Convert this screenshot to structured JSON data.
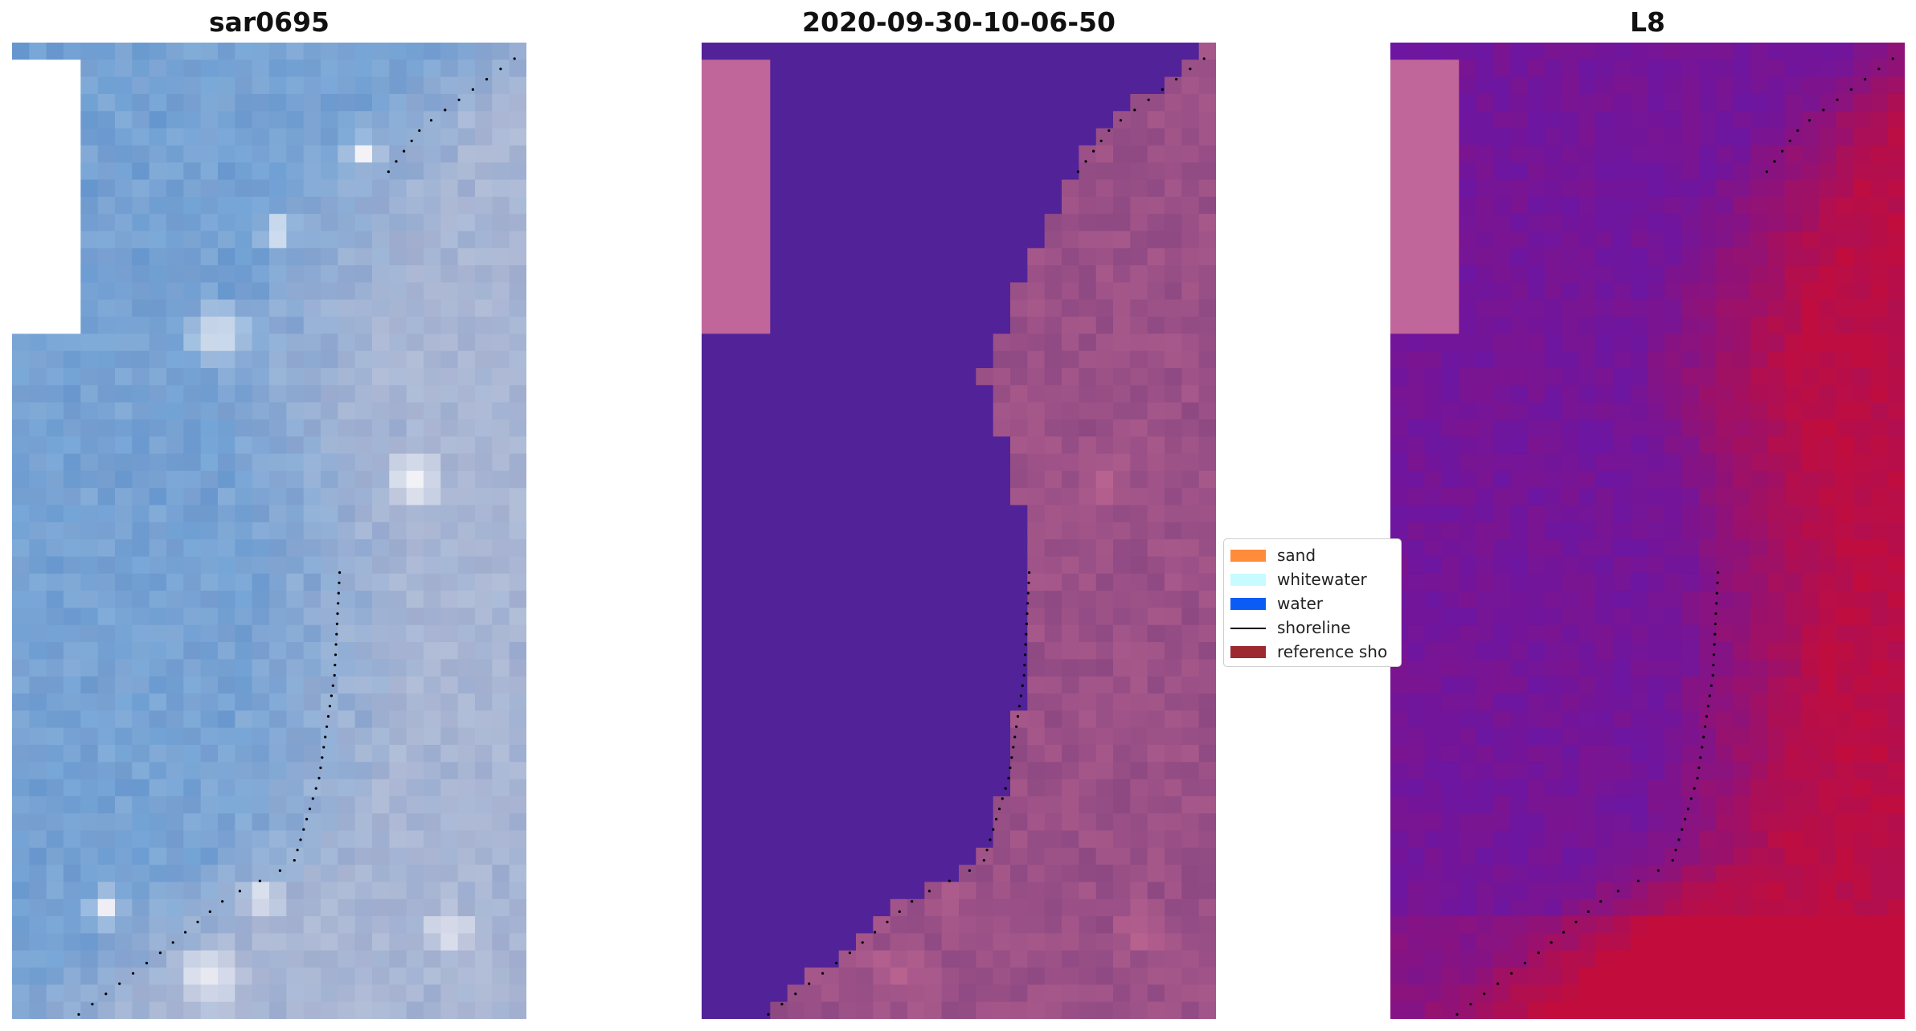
{
  "panels": [
    {
      "title": "sar0695",
      "kind": "rgb"
    },
    {
      "title": "2020-09-30-10-06-50",
      "kind": "classified"
    },
    {
      "title": "L8",
      "kind": "index"
    }
  ],
  "legend": {
    "items": [
      {
        "label": "sand",
        "type": "patch",
        "color": "#ff8c3a"
      },
      {
        "label": "whitewater",
        "type": "patch",
        "color": "#c7fbff"
      },
      {
        "label": "water",
        "type": "patch",
        "color": "#0a5cf5"
      },
      {
        "label": "shoreline",
        "type": "line",
        "color": "#000000"
      },
      {
        "label": "reference sho",
        "type": "patch",
        "color": "#9c2a2e"
      }
    ]
  },
  "colors": {
    "rgb_water": "#6f9fd3",
    "rgb_land": "#aab6d3",
    "rgb_bright": "#f1f1f6",
    "classified_water": "#522298",
    "classified_land": "#8e4983",
    "classified_land_bright": "#b8628f",
    "index_low": "#6c16a2",
    "index_high": "#c20d3c",
    "nodata_overlay": "#c0669a",
    "shoreline": "#000000"
  }
}
